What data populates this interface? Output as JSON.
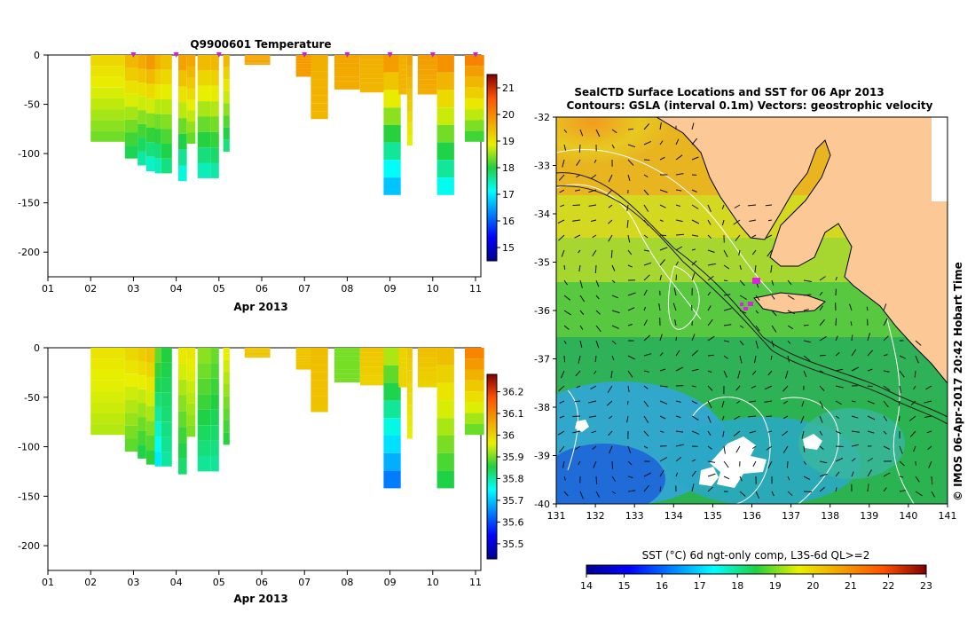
{
  "left_top": {
    "title": "Q9900601  Temperature",
    "xlabel": "Apr 2013",
    "x_ticks": [
      "01",
      "02",
      "03",
      "04",
      "05",
      "06",
      "07",
      "08",
      "09",
      "10",
      "11"
    ],
    "y_ticks": [
      "0",
      "-50",
      "-100",
      "-150",
      "-200"
    ],
    "y_tick_values": [
      0,
      -50,
      -100,
      -150,
      -200
    ],
    "ylim": [
      -225,
      0
    ],
    "colorbar_ticks": [
      "21",
      "20",
      "19",
      "18",
      "17",
      "16",
      "15"
    ],
    "colorbar_values": [
      21,
      20,
      19,
      18,
      17,
      16,
      15
    ],
    "colorbar_range": [
      14.5,
      21.5
    ]
  },
  "left_bottom": {
    "xlabel": "Apr 2013",
    "x_ticks": [
      "01",
      "02",
      "03",
      "04",
      "05",
      "06",
      "07",
      "08",
      "09",
      "10",
      "11"
    ],
    "y_ticks": [
      "0",
      "-50",
      "-100",
      "-150",
      "-200"
    ],
    "y_tick_values": [
      0,
      -50,
      -100,
      -150,
      -200
    ],
    "ylim": [
      -225,
      0
    ],
    "colorbar_ticks": [
      "36.2",
      "36.1",
      "36",
      "35.9",
      "35.8",
      "35.7",
      "35.6",
      "35.5"
    ],
    "colorbar_values": [
      36.2,
      36.1,
      36.0,
      35.9,
      35.8,
      35.7,
      35.6,
      35.5
    ],
    "colorbar_range": [
      35.43,
      36.28
    ]
  },
  "map": {
    "title_line1": "SealCTD Surface Locations and SST for 06 Apr 2013",
    "title_line2": "Contours: GSLA (interval 0.1m) Vectors: geostrophic velocity",
    "lat_ticks": [
      "-32",
      "-33",
      "-34",
      "-35",
      "-36",
      "-37",
      "-38",
      "-39",
      "-40"
    ],
    "lon_ticks": [
      "131",
      "132",
      "133",
      "134",
      "135",
      "136",
      "137",
      "138",
      "139",
      "140",
      "141"
    ],
    "side_label": "© IMOS 06-Apr-2017 20:42 Hobart Time",
    "colorbar_label": "SST (°C) 6d ngt-only comp, L3S-6d QL>=2",
    "colorbar_ticks": [
      "14",
      "15",
      "16",
      "17",
      "18",
      "19",
      "20",
      "21",
      "22",
      "23"
    ],
    "colorbar_values": [
      14,
      15,
      16,
      17,
      18,
      19,
      20,
      21,
      22,
      23
    ],
    "colorbar_range": [
      14,
      23
    ]
  },
  "chart_data": [
    {
      "type": "heatmap",
      "title": "Q9900601  Temperature",
      "xlabel": "Apr 2013",
      "ylabel": "",
      "x_range_day": [
        1,
        11
      ],
      "ylim": [
        -225,
        0
      ],
      "variable": "temperature (°C)",
      "profiles": [
        {
          "day": 2.0,
          "depth": 88,
          "surface": 19.2,
          "bottom": 18.3
        },
        {
          "day": 2.8,
          "depth": 105,
          "surface": 19.6,
          "bottom": 17.8
        },
        {
          "day": 3.1,
          "depth": 112,
          "surface": 19.8,
          "bottom": 17.4
        },
        {
          "day": 3.3,
          "depth": 118,
          "surface": 20.0,
          "bottom": 17.2
        },
        {
          "day": 3.5,
          "depth": 120,
          "surface": 19.7,
          "bottom": 17.3
        },
        {
          "day": 3.65,
          "depth": 120,
          "surface": 19.5,
          "bottom": 17.6
        },
        {
          "day": 4.05,
          "depth": 128,
          "surface": 19.9,
          "bottom": 17.1
        },
        {
          "day": 4.25,
          "depth": 90,
          "surface": 19.8,
          "bottom": 18.2
        },
        {
          "day": 4.5,
          "depth": 125,
          "surface": 19.6,
          "bottom": 17.3
        },
        {
          "day": 4.8,
          "depth": 125,
          "surface": 19.6,
          "bottom": 17.4
        },
        {
          "day": 5.1,
          "depth": 98,
          "surface": 19.6,
          "bottom": 17.6
        },
        {
          "day": 5.6,
          "depth": 10,
          "surface": 19.7,
          "bottom": 19.7
        },
        {
          "day": 6.8,
          "depth": 22,
          "surface": 19.8,
          "bottom": 19.8
        },
        {
          "day": 7.15,
          "depth": 65,
          "surface": 19.6,
          "bottom": 19.5
        },
        {
          "day": 7.7,
          "depth": 35,
          "surface": 19.7,
          "bottom": 19.6
        },
        {
          "day": 8.3,
          "depth": 38,
          "surface": 19.6,
          "bottom": 19.5
        },
        {
          "day": 8.85,
          "depth": 142,
          "surface": 20.0,
          "bottom": 16.5
        },
        {
          "day": 9.2,
          "depth": 40,
          "surface": 19.6,
          "bottom": 19.5
        },
        {
          "day": 9.4,
          "depth": 92,
          "surface": 19.8,
          "bottom": 18.8
        },
        {
          "day": 9.65,
          "depth": 40,
          "surface": 19.8,
          "bottom": 19.6
        },
        {
          "day": 10.1,
          "depth": 142,
          "surface": 20.1,
          "bottom": 17.0
        },
        {
          "day": 10.75,
          "depth": 88,
          "surface": 20.2,
          "bottom": 18.0
        }
      ]
    },
    {
      "type": "heatmap",
      "title": "",
      "xlabel": "Apr 2013",
      "ylabel": "",
      "x_range_day": [
        1,
        11
      ],
      "ylim": [
        -225,
        0
      ],
      "variable": "salinity",
      "profiles": [
        {
          "day": 2.0,
          "depth": 88,
          "surface": 35.98,
          "bottom": 35.93
        },
        {
          "day": 2.8,
          "depth": 105,
          "surface": 36.0,
          "bottom": 35.88
        },
        {
          "day": 3.1,
          "depth": 112,
          "surface": 36.02,
          "bottom": 35.84
        },
        {
          "day": 3.3,
          "depth": 118,
          "surface": 36.03,
          "bottom": 35.85
        },
        {
          "day": 3.5,
          "depth": 120,
          "surface": 35.9,
          "bottom": 35.72
        },
        {
          "day": 3.65,
          "depth": 120,
          "surface": 35.86,
          "bottom": 35.8
        },
        {
          "day": 4.05,
          "depth": 128,
          "surface": 35.98,
          "bottom": 35.82
        },
        {
          "day": 4.25,
          "depth": 90,
          "surface": 35.98,
          "bottom": 35.9
        },
        {
          "day": 4.5,
          "depth": 125,
          "surface": 35.92,
          "bottom": 35.8
        },
        {
          "day": 4.8,
          "depth": 125,
          "surface": 35.9,
          "bottom": 35.8
        },
        {
          "day": 5.1,
          "depth": 98,
          "surface": 35.97,
          "bottom": 35.85
        },
        {
          "day": 5.6,
          "depth": 10,
          "surface": 36.02,
          "bottom": 36.02
        },
        {
          "day": 6.8,
          "depth": 22,
          "surface": 36.02,
          "bottom": 36.02
        },
        {
          "day": 7.15,
          "depth": 65,
          "surface": 36.03,
          "bottom": 36.02
        },
        {
          "day": 7.7,
          "depth": 35,
          "surface": 35.9,
          "bottom": 35.9
        },
        {
          "day": 8.3,
          "depth": 38,
          "surface": 36.02,
          "bottom": 36.0
        },
        {
          "day": 8.85,
          "depth": 142,
          "surface": 35.95,
          "bottom": 35.62
        },
        {
          "day": 9.2,
          "depth": 40,
          "surface": 36.0,
          "bottom": 36.0
        },
        {
          "day": 9.4,
          "depth": 92,
          "surface": 36.02,
          "bottom": 35.96
        },
        {
          "day": 9.65,
          "depth": 40,
          "surface": 36.03,
          "bottom": 36.0
        },
        {
          "day": 10.1,
          "depth": 142,
          "surface": 36.04,
          "bottom": 35.84
        },
        {
          "day": 10.75,
          "depth": 88,
          "surface": 36.12,
          "bottom": 35.88
        }
      ]
    },
    {
      "type": "heatmap",
      "title": "SealCTD Surface Locations and SST for 06 Apr 2013",
      "xlabel": "",
      "ylabel": "",
      "xlim": [
        131,
        141
      ],
      "ylim": [
        -40,
        -32
      ],
      "variable": "SST (°C)",
      "seal_locations": [
        {
          "lon": 136.6,
          "lat": -35.4
        },
        {
          "lon": 136.5,
          "lat": -35.7
        },
        {
          "lon": 136.4,
          "lat": -35.9
        },
        {
          "lon": 136.3,
          "lat": -36.0
        }
      ]
    }
  ]
}
